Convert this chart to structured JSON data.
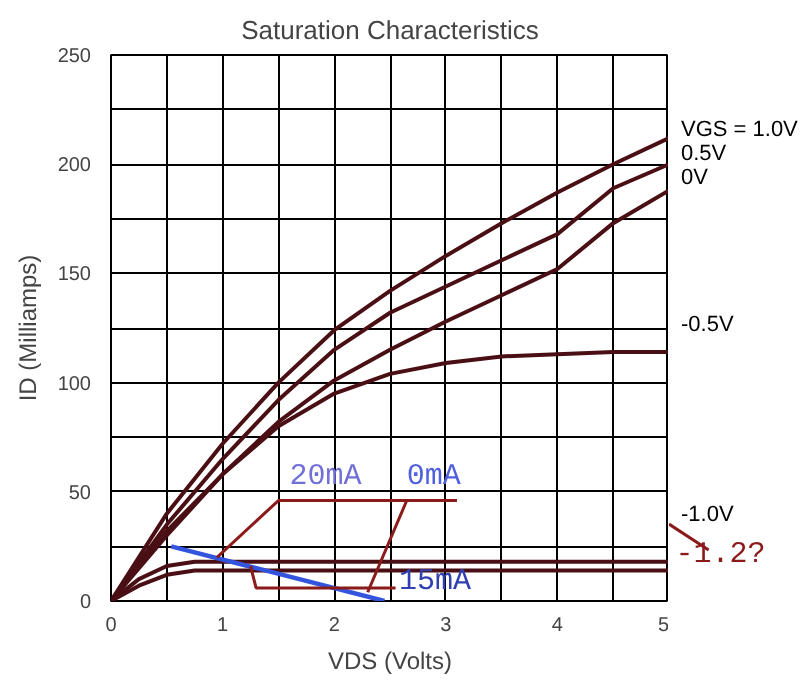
{
  "chart_data": {
    "type": "line",
    "title": "Saturation Characteristics",
    "xlabel": "VDS (Volts)",
    "ylabel": "ID (Milliamps)",
    "xlim": [
      0,
      5
    ],
    "ylim": [
      0,
      250
    ],
    "xticks": [
      0,
      {
        "value": 0.5,
        "label": null
      },
      1,
      {
        "value": 1.5,
        "label": null
      },
      2,
      {
        "value": 2.5,
        "label": null
      },
      3,
      {
        "value": 3.5,
        "label": null
      },
      4,
      {
        "value": 4.5,
        "label": null
      },
      5
    ],
    "yticks": [
      0,
      {
        "value": 25,
        "label": null
      },
      50,
      {
        "value": 75,
        "label": null
      },
      100,
      {
        "value": 125,
        "label": null
      },
      150,
      {
        "value": 175,
        "label": null
      },
      200,
      {
        "value": 225,
        "label": null
      },
      250
    ],
    "grid": true,
    "marker": "none",
    "line_style": "solid",
    "series": [
      {
        "name": "VGS = 1.0V",
        "color": "#4a0f14",
        "x": [
          0,
          0.5,
          1,
          1.5,
          2,
          2.5,
          3,
          3.5,
          4,
          4.5,
          5
        ],
        "values": [
          0,
          40,
          72,
          100,
          124,
          142,
          158,
          173,
          187,
          200,
          212
        ]
      },
      {
        "name": "0.5V",
        "color": "#4a0f14",
        "x": [
          0,
          0.5,
          1,
          1.5,
          2,
          2.5,
          3,
          3.5,
          4,
          4.5,
          5
        ],
        "values": [
          0,
          35,
          65,
          92,
          115,
          132,
          144,
          156,
          168,
          189,
          200
        ]
      },
      {
        "name": "0V",
        "color": "#4a0f14",
        "x": [
          0,
          0.5,
          1,
          1.5,
          2,
          2.5,
          3,
          3.5,
          4,
          4.5,
          5
        ],
        "values": [
          0,
          30,
          58,
          82,
          101,
          115,
          128,
          140,
          152,
          173,
          188
        ]
      },
      {
        "name": "-0.5V",
        "color": "#4a0f14",
        "x": [
          0,
          0.5,
          1,
          1.5,
          2,
          2.5,
          3,
          3.5,
          4,
          4.5,
          5
        ],
        "values": [
          0,
          32,
          58,
          80,
          95,
          104,
          109,
          112,
          113,
          114,
          114
        ]
      },
      {
        "name": "-1.0V",
        "color": "#4a0f14",
        "x": [
          0,
          0.25,
          0.5,
          0.75,
          5
        ],
        "values": [
          0,
          10,
          16,
          18,
          18
        ]
      },
      {
        "color": "#4a0f14",
        "x": [
          0,
          0.25,
          0.5,
          0.75,
          5
        ],
        "values": [
          0,
          7,
          12,
          14,
          14
        ]
      },
      {
        "color": "#3355dd",
        "x": [
          0.54,
          2.45
        ],
        "values": [
          25,
          0
        ]
      }
    ],
    "annotations": [
      {
        "text": "20mA",
        "x": 0.95,
        "y": 20
      },
      {
        "text": "0mA",
        "x": 2.3,
        "y": 4
      },
      {
        "text": "15mA",
        "x": 1.25,
        "y": 16
      },
      {
        "text": "-1.2?",
        "x": 5,
        "y": 13.5
      }
    ]
  }
}
